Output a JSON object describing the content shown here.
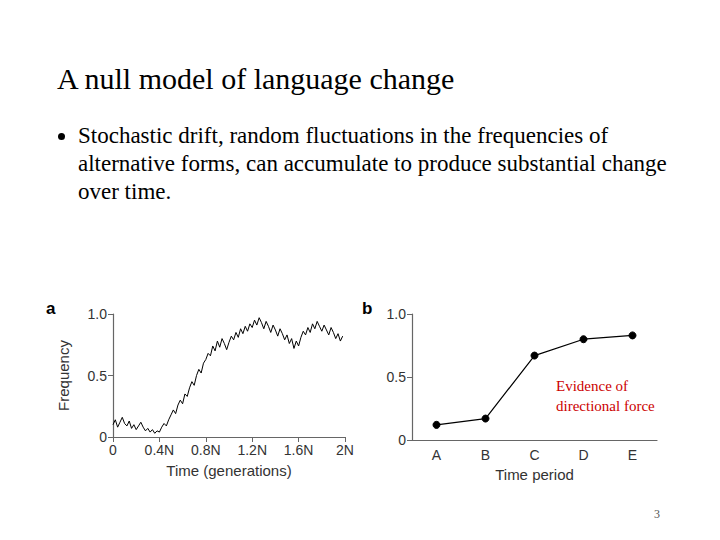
{
  "slide": {
    "title": "A null model of language change",
    "bullets": [
      "Stochastic drift, random fluctuations in the frequencies of alternative forms, can accumulate to produce substantial change over time."
    ],
    "page_number": 3
  },
  "chart_data": [
    {
      "type": "line",
      "panel_label": "a",
      "xlabel": "Time (generations)",
      "ylabel": "Frequency",
      "x": [
        0.0,
        0.02,
        0.04,
        0.06,
        0.08,
        0.1,
        0.12,
        0.14,
        0.16,
        0.18,
        0.2,
        0.22,
        0.24,
        0.26,
        0.28,
        0.3,
        0.32,
        0.34,
        0.36,
        0.38,
        0.4,
        0.42,
        0.44,
        0.46,
        0.48,
        0.5,
        0.52,
        0.54,
        0.56,
        0.58,
        0.6,
        0.62,
        0.64,
        0.66,
        0.68,
        0.7,
        0.72,
        0.74,
        0.76,
        0.78,
        0.8,
        0.82,
        0.84,
        0.86,
        0.88,
        0.9,
        0.92,
        0.94,
        0.96,
        0.98,
        1.0,
        1.02,
        1.04,
        1.06,
        1.08,
        1.1,
        1.12,
        1.14,
        1.16,
        1.18,
        1.2,
        1.22,
        1.24,
        1.26,
        1.28,
        1.3,
        1.32,
        1.34,
        1.36,
        1.38,
        1.4,
        1.42,
        1.44,
        1.46,
        1.48,
        1.5,
        1.52,
        1.54,
        1.56,
        1.58,
        1.6,
        1.62,
        1.64,
        1.66,
        1.68,
        1.7,
        1.72,
        1.74,
        1.76,
        1.78,
        1.8,
        1.82,
        1.84,
        1.86,
        1.88,
        1.9,
        1.92,
        1.94,
        1.96,
        1.98
      ],
      "values": [
        0.1,
        0.14,
        0.08,
        0.12,
        0.16,
        0.11,
        0.09,
        0.13,
        0.07,
        0.1,
        0.06,
        0.09,
        0.12,
        0.08,
        0.05,
        0.07,
        0.04,
        0.06,
        0.03,
        0.05,
        0.04,
        0.08,
        0.11,
        0.09,
        0.14,
        0.18,
        0.22,
        0.19,
        0.26,
        0.3,
        0.27,
        0.35,
        0.33,
        0.4,
        0.45,
        0.42,
        0.5,
        0.55,
        0.52,
        0.6,
        0.63,
        0.68,
        0.66,
        0.74,
        0.7,
        0.78,
        0.73,
        0.8,
        0.76,
        0.71,
        0.77,
        0.82,
        0.79,
        0.85,
        0.81,
        0.88,
        0.84,
        0.9,
        0.86,
        0.92,
        0.89,
        0.95,
        0.91,
        0.97,
        0.93,
        0.88,
        0.94,
        0.9,
        0.85,
        0.91,
        0.87,
        0.82,
        0.88,
        0.84,
        0.79,
        0.83,
        0.76,
        0.8,
        0.72,
        0.78,
        0.74,
        0.81,
        0.86,
        0.83,
        0.89,
        0.85,
        0.92,
        0.88,
        0.94,
        0.9,
        0.86,
        0.91,
        0.87,
        0.83,
        0.89,
        0.85,
        0.8,
        0.84,
        0.78,
        0.82
      ],
      "color": "#000000",
      "marker": "none",
      "xlim": [
        0,
        2
      ],
      "xticks": [
        0,
        {
          "value": 0.4,
          "label": "0.4N"
        },
        {
          "value": 0.8,
          "label": "0.8N"
        },
        {
          "value": 1.2,
          "label": "1.2N"
        },
        {
          "value": 1.6,
          "label": "1.6N"
        },
        {
          "value": 2,
          "label": "2N"
        }
      ],
      "ylim": [
        0,
        1
      ],
      "yticks": [
        0,
        0.5,
        {
          "value": 1,
          "label": "1.0"
        }
      ],
      "grid": false
    },
    {
      "type": "line",
      "panel_label": "b",
      "xlabel": "Time period",
      "categories": [
        "A",
        "B",
        "C",
        "D",
        "E"
      ],
      "values": [
        0.12,
        0.17,
        0.67,
        0.8,
        0.83
      ],
      "color": "#000000",
      "marker": "circle",
      "ylim": [
        0,
        1
      ],
      "yticks": [
        0,
        0.5,
        {
          "value": 1,
          "label": "1.0"
        }
      ],
      "grid": false,
      "annotation": {
        "text": "Evidence of directional force",
        "color": "#cc0000"
      }
    }
  ]
}
